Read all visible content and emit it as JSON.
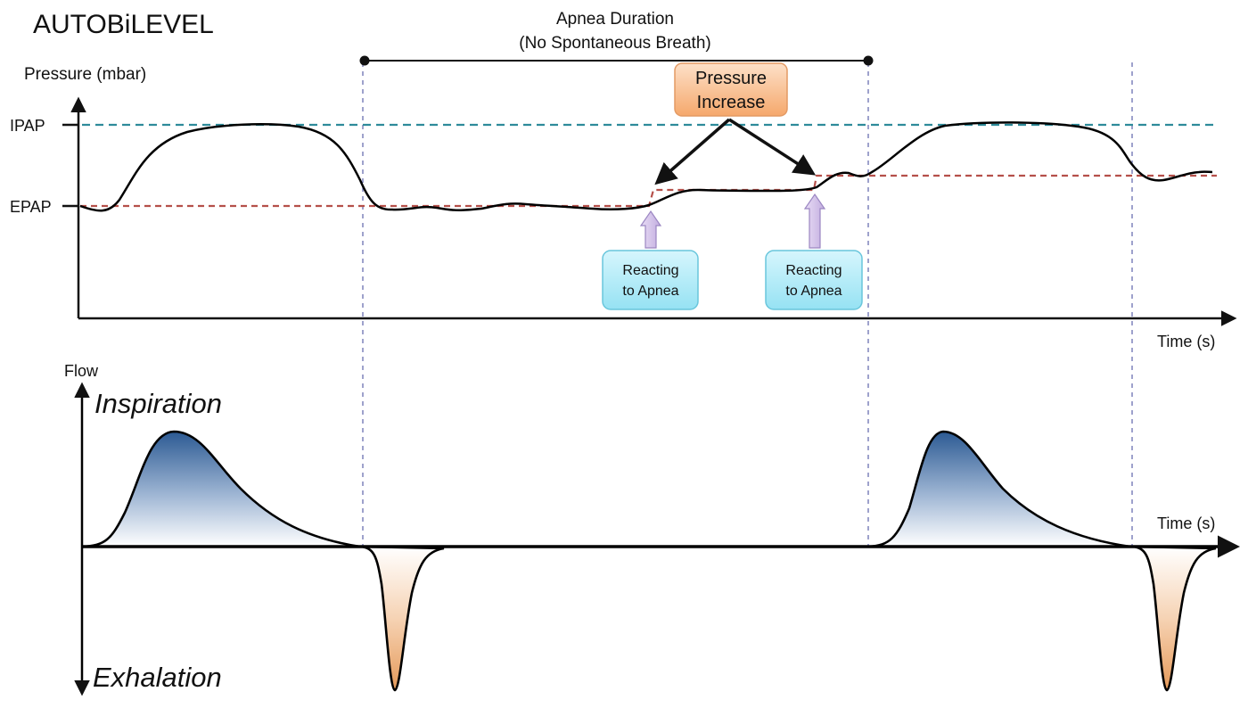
{
  "title": "AUTOBiLEVEL",
  "apnea_span": {
    "line1": "Apnea Duration",
    "line2": "(No Spontaneous Breath)"
  },
  "pressure_chart": {
    "y_axis_label": "Pressure (mbar)",
    "x_axis_label": "Time (s)",
    "levels": {
      "ipap_label": "IPAP",
      "epap_label": "EPAP"
    }
  },
  "flow_chart": {
    "y_axis_label": "Flow",
    "x_axis_label": "Time (s)",
    "inspiration_label": "Inspiration",
    "exhalation_label": "Exhalation"
  },
  "callouts": {
    "pressure_increase": {
      "line1": "Pressure",
      "line2": "Increase"
    },
    "reacting_1": {
      "line1": "Reacting",
      "line2": "to Apnea"
    },
    "reacting_2": {
      "line1": "Reacting",
      "line2": "to Apnea"
    }
  },
  "colors": {
    "ipap_line": "#2e8b9a",
    "epap_line": "#b5504a",
    "guide_line": "#6a6fb0",
    "inspiration_fill": "#2f5f99",
    "exhalation_fill": "#e8a66a",
    "pressure_box_fill": "#f7b27a",
    "reacting_box_fill": "#a8e6f4",
    "up_arrow_fill": "#d3c3e8"
  }
}
